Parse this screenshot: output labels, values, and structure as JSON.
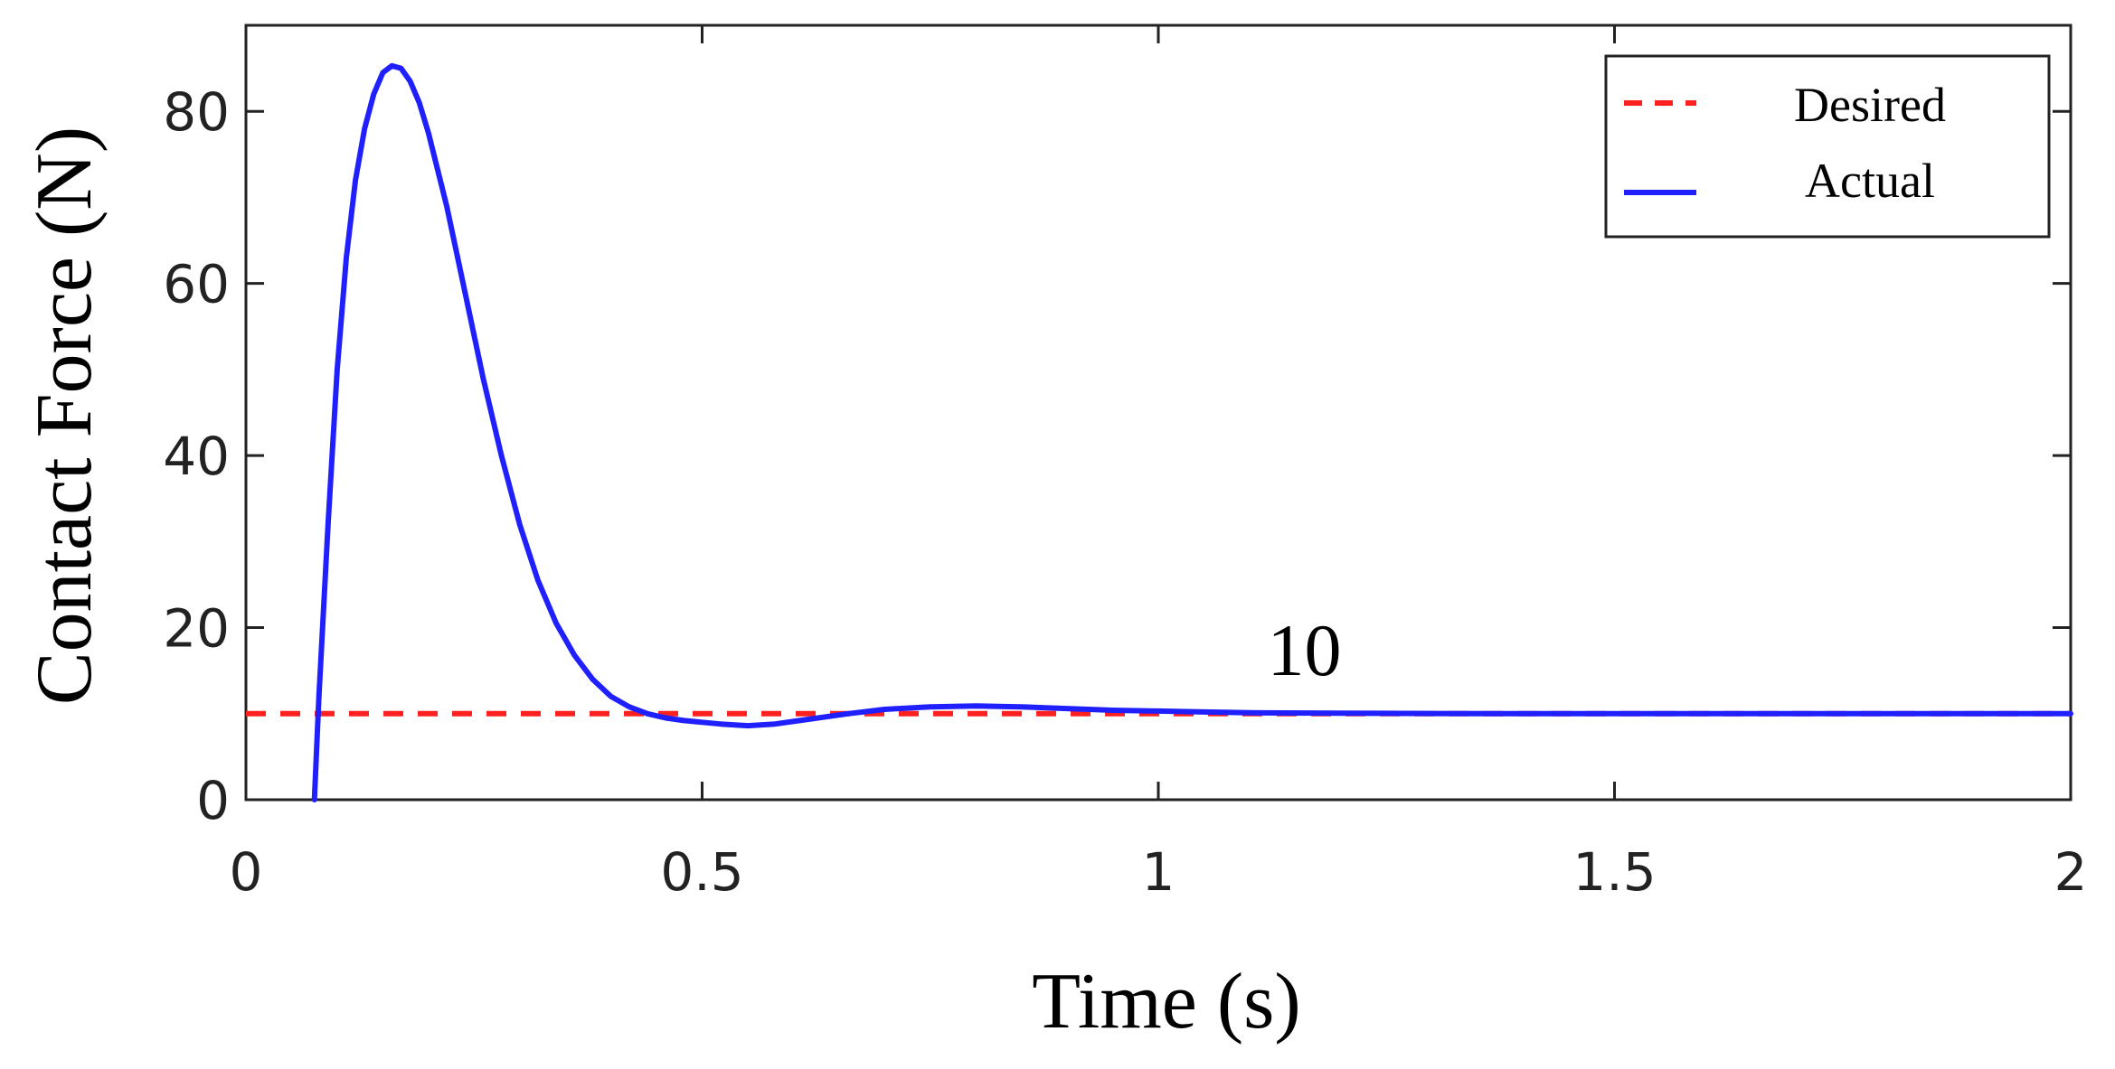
{
  "chart_data": {
    "type": "line",
    "xlabel": "Time (s)",
    "ylabel": "Contact Force (N)",
    "xlim": [
      0,
      2
    ],
    "ylim": [
      0,
      90
    ],
    "xticks": [
      0,
      0.5,
      1,
      1.5,
      2
    ],
    "xtick_labels": [
      "0",
      "0.5",
      "1",
      "1.5",
      "2"
    ],
    "yticks": [
      0,
      20,
      40,
      60,
      80
    ],
    "ytick_labels": [
      "0",
      "20",
      "40",
      "60",
      "80"
    ],
    "grid": false,
    "legend_position": "top-right",
    "annotation": {
      "text": "10",
      "x": 1.16,
      "y": 14.5
    },
    "series": [
      {
        "name": "Desired",
        "color": "#ff2020",
        "style": "dashed",
        "x": [
          0,
          2
        ],
        "y": [
          10,
          10
        ]
      },
      {
        "name": "Actual",
        "color": "#2020ff",
        "style": "solid",
        "x": [
          0.075,
          0.08,
          0.09,
          0.1,
          0.11,
          0.12,
          0.13,
          0.14,
          0.15,
          0.16,
          0.17,
          0.18,
          0.19,
          0.2,
          0.22,
          0.24,
          0.26,
          0.28,
          0.3,
          0.32,
          0.34,
          0.36,
          0.38,
          0.4,
          0.42,
          0.44,
          0.46,
          0.48,
          0.5,
          0.52,
          0.55,
          0.58,
          0.62,
          0.66,
          0.7,
          0.75,
          0.8,
          0.85,
          0.9,
          0.95,
          1.0,
          1.05,
          1.1,
          1.2,
          1.3,
          1.4,
          1.5,
          1.6,
          1.7,
          1.8,
          1.9,
          2.0
        ],
        "y": [
          0,
          12,
          32,
          50,
          63,
          72,
          78,
          82,
          84.5,
          85.3,
          85.0,
          83.5,
          81,
          77.5,
          69,
          59,
          49,
          40,
          32,
          25.5,
          20.5,
          16.8,
          14.0,
          12.0,
          10.8,
          10.0,
          9.5,
          9.2,
          9.0,
          8.8,
          8.6,
          8.8,
          9.4,
          10.0,
          10.5,
          10.8,
          10.9,
          10.8,
          10.6,
          10.4,
          10.3,
          10.2,
          10.1,
          10.05,
          10.02,
          10.0,
          10.0,
          10.0,
          10.0,
          10.0,
          10.0,
          10.0
        ]
      }
    ]
  }
}
